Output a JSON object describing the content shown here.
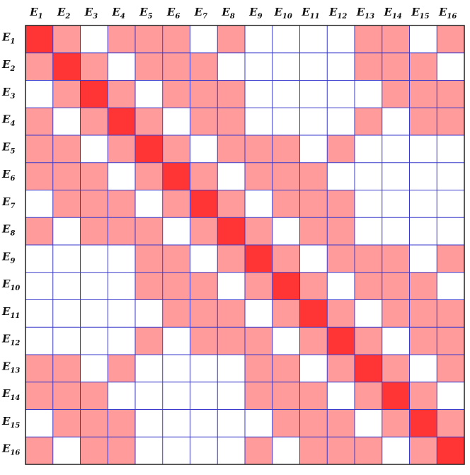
{
  "labels": [
    {
      "base": "E",
      "sub": "1"
    },
    {
      "base": "E",
      "sub": "2"
    },
    {
      "base": "E",
      "sub": "3"
    },
    {
      "base": "E",
      "sub": "4"
    },
    {
      "base": "E",
      "sub": "5"
    },
    {
      "base": "E",
      "sub": "6"
    },
    {
      "base": "E",
      "sub": "7"
    },
    {
      "base": "E",
      "sub": "8"
    },
    {
      "base": "E",
      "sub": "9"
    },
    {
      "base": "E",
      "sub": "10"
    },
    {
      "base": "E",
      "sub": "11"
    },
    {
      "base": "E",
      "sub": "12"
    },
    {
      "base": "E",
      "sub": "13"
    },
    {
      "base": "E",
      "sub": "14"
    },
    {
      "base": "E",
      "sub": "15"
    },
    {
      "base": "E",
      "sub": "16"
    }
  ],
  "colors": [
    "#ffffff",
    "#ff9b9b",
    "#ff3535"
  ],
  "matrix": [
    [
      2,
      1,
      0,
      1,
      1,
      1,
      0,
      1,
      0,
      0,
      0,
      0,
      1,
      1,
      0,
      1
    ],
    [
      1,
      2,
      1,
      0,
      1,
      1,
      1,
      0,
      0,
      0,
      0,
      0,
      1,
      1,
      1,
      0
    ],
    [
      0,
      1,
      2,
      1,
      0,
      1,
      1,
      1,
      0,
      0,
      0,
      0,
      0,
      1,
      1,
      1
    ],
    [
      1,
      0,
      1,
      2,
      1,
      0,
      1,
      1,
      0,
      0,
      0,
      0,
      1,
      0,
      1,
      1
    ],
    [
      1,
      1,
      0,
      1,
      2,
      1,
      0,
      1,
      1,
      1,
      0,
      1,
      0,
      0,
      0,
      0
    ],
    [
      1,
      1,
      1,
      0,
      1,
      2,
      1,
      0,
      1,
      1,
      1,
      0,
      0,
      0,
      0,
      0
    ],
    [
      0,
      1,
      1,
      1,
      0,
      1,
      2,
      1,
      0,
      1,
      1,
      1,
      0,
      0,
      0,
      0
    ],
    [
      1,
      0,
      1,
      1,
      1,
      0,
      1,
      2,
      1,
      0,
      1,
      1,
      0,
      0,
      0,
      0
    ],
    [
      0,
      0,
      0,
      0,
      1,
      1,
      0,
      1,
      2,
      1,
      0,
      1,
      1,
      1,
      0,
      1
    ],
    [
      0,
      0,
      0,
      0,
      1,
      1,
      1,
      0,
      1,
      2,
      1,
      0,
      1,
      1,
      1,
      0
    ],
    [
      0,
      0,
      0,
      0,
      0,
      1,
      1,
      1,
      0,
      1,
      2,
      1,
      0,
      1,
      1,
      1
    ],
    [
      0,
      0,
      0,
      0,
      1,
      0,
      1,
      1,
      1,
      0,
      1,
      2,
      1,
      0,
      1,
      1
    ],
    [
      1,
      1,
      0,
      1,
      0,
      0,
      0,
      0,
      1,
      1,
      0,
      1,
      2,
      1,
      0,
      1
    ],
    [
      1,
      1,
      1,
      0,
      0,
      0,
      0,
      0,
      1,
      1,
      1,
      0,
      1,
      2,
      1,
      0
    ],
    [
      0,
      1,
      1,
      1,
      0,
      0,
      0,
      0,
      0,
      1,
      1,
      1,
      0,
      1,
      2,
      1
    ],
    [
      1,
      0,
      1,
      1,
      0,
      0,
      0,
      0,
      1,
      0,
      1,
      1,
      1,
      0,
      1,
      2
    ]
  ]
}
